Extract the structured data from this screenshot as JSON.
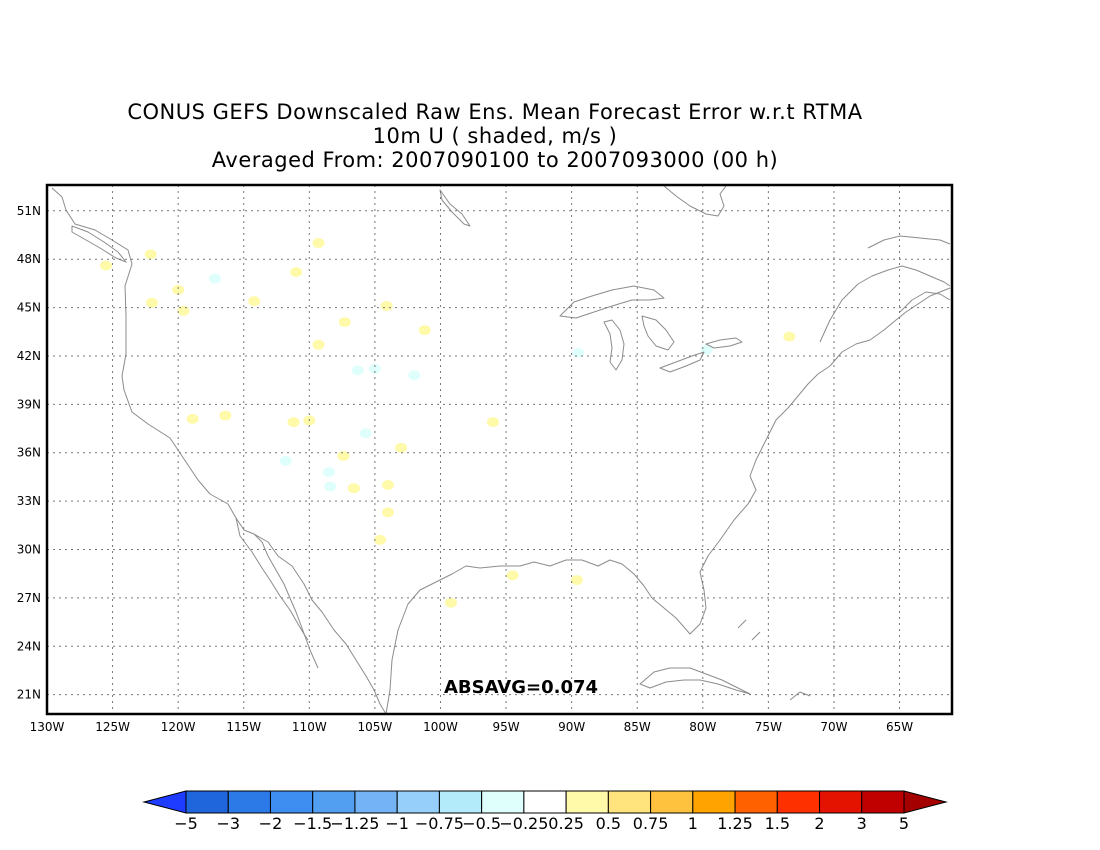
{
  "title": {
    "line1": "CONUS GEFS Downscaled Raw Ens. Mean Forecast Error w.r.t RTMA",
    "line2": "10m U ( shaded, m/s )",
    "line3": "Averaged From: 2007090100 to 2007093000 (00 h)"
  },
  "map": {
    "lon_range": [
      -130,
      -61
    ],
    "lat_range": [
      19.8,
      52.6
    ],
    "grid": true,
    "lat_ticks": [
      {
        "value": 51,
        "label": "51N"
      },
      {
        "value": 48,
        "label": "48N"
      },
      {
        "value": 45,
        "label": "45N"
      },
      {
        "value": 42,
        "label": "42N"
      },
      {
        "value": 39,
        "label": "39N"
      },
      {
        "value": 36,
        "label": "36N"
      },
      {
        "value": 33,
        "label": "33N"
      },
      {
        "value": 30,
        "label": "30N"
      },
      {
        "value": 27,
        "label": "27N"
      },
      {
        "value": 24,
        "label": "24N"
      },
      {
        "value": 21,
        "label": "21N"
      }
    ],
    "lon_ticks": [
      {
        "value": -130,
        "label": "130W"
      },
      {
        "value": -125,
        "label": "125W"
      },
      {
        "value": -120,
        "label": "120W"
      },
      {
        "value": -115,
        "label": "115W"
      },
      {
        "value": -110,
        "label": "110W"
      },
      {
        "value": -105,
        "label": "105W"
      },
      {
        "value": -100,
        "label": "100W"
      },
      {
        "value": -95,
        "label": "95W"
      },
      {
        "value": -90,
        "label": "90W"
      },
      {
        "value": -85,
        "label": "85W"
      },
      {
        "value": -80,
        "label": "80W"
      },
      {
        "value": -75,
        "label": "75W"
      },
      {
        "value": -70,
        "label": "70W"
      },
      {
        "value": -65,
        "label": "65W"
      }
    ],
    "absavg_label": "ABSAVG=0.074",
    "coastline_color": "#8c8c8c",
    "grid_color": "#777777",
    "error_patches": [
      {
        "lon": -125.5,
        "lat": 47.6,
        "value": 0.4
      },
      {
        "lon": -122.1,
        "lat": 48.3,
        "value": 0.4
      },
      {
        "lon": -120.0,
        "lat": 46.1,
        "value": 0.4
      },
      {
        "lon": -122.0,
        "lat": 45.3,
        "value": 0.4
      },
      {
        "lon": -119.6,
        "lat": 44.8,
        "value": 0.4
      },
      {
        "lon": -117.2,
        "lat": 46.8,
        "value": -0.4
      },
      {
        "lon": -114.2,
        "lat": 45.4,
        "value": 0.4
      },
      {
        "lon": -111.0,
        "lat": 47.2,
        "value": 0.4
      },
      {
        "lon": -109.3,
        "lat": 49.0,
        "value": 0.4
      },
      {
        "lon": -107.3,
        "lat": 44.1,
        "value": 0.4
      },
      {
        "lon": -104.1,
        "lat": 45.1,
        "value": 0.4
      },
      {
        "lon": -109.3,
        "lat": 42.7,
        "value": 0.4
      },
      {
        "lon": -101.2,
        "lat": 43.6,
        "value": 0.4
      },
      {
        "lon": -106.3,
        "lat": 41.1,
        "value": -0.4
      },
      {
        "lon": -105.0,
        "lat": 41.2,
        "value": -0.4
      },
      {
        "lon": -102.0,
        "lat": 40.8,
        "value": -0.4
      },
      {
        "lon": -118.9,
        "lat": 38.1,
        "value": 0.4
      },
      {
        "lon": -116.4,
        "lat": 38.3,
        "value": 0.4
      },
      {
        "lon": -111.2,
        "lat": 37.9,
        "value": 0.4
      },
      {
        "lon": -110.0,
        "lat": 38.0,
        "value": 0.4
      },
      {
        "lon": -105.7,
        "lat": 37.2,
        "value": -0.4
      },
      {
        "lon": -103.0,
        "lat": 36.3,
        "value": 0.4
      },
      {
        "lon": -107.4,
        "lat": 35.8,
        "value": 0.4
      },
      {
        "lon": -111.8,
        "lat": 35.5,
        "value": -0.4
      },
      {
        "lon": -108.5,
        "lat": 34.8,
        "value": -0.4
      },
      {
        "lon": -108.4,
        "lat": 33.9,
        "value": -0.4
      },
      {
        "lon": -106.6,
        "lat": 33.8,
        "value": 0.4
      },
      {
        "lon": -104.0,
        "lat": 34.0,
        "value": 0.4
      },
      {
        "lon": -104.0,
        "lat": 32.3,
        "value": 0.4
      },
      {
        "lon": -104.6,
        "lat": 30.6,
        "value": 0.4
      },
      {
        "lon": -96.0,
        "lat": 37.9,
        "value": 0.4
      },
      {
        "lon": -94.5,
        "lat": 28.4,
        "value": 0.4
      },
      {
        "lon": -89.6,
        "lat": 28.1,
        "value": 0.4
      },
      {
        "lon": -99.2,
        "lat": 26.7,
        "value": 0.4
      },
      {
        "lon": -73.4,
        "lat": 43.2,
        "value": 0.4
      },
      {
        "lon": -89.5,
        "lat": 42.2,
        "value": -0.4
      },
      {
        "lon": -79.7,
        "lat": 42.4,
        "value": -0.4
      }
    ]
  },
  "colorbar": {
    "colors": [
      "#1f65dc",
      "#2c79e8",
      "#3e8ef2",
      "#529ff2",
      "#74b4f6",
      "#96d0fa",
      "#b4ebfa",
      "#dffffc",
      "#ffffff",
      "#fff9aa",
      "#ffe37c",
      "#ffc23e",
      "#ffa300",
      "#ff6100",
      "#ff3000",
      "#e41300",
      "#c00000"
    ],
    "low_extend_color": "#1e3cff",
    "high_extend_color": "#a50000",
    "labels": [
      "−5",
      "−3",
      "−2",
      "−1.5",
      "−1.25",
      "−1",
      "−0.75",
      "−0.5",
      "−0.25",
      "0.25",
      "0.5",
      "0.75",
      "1",
      "1.25",
      "1.5",
      "2",
      "3",
      "5"
    ]
  }
}
